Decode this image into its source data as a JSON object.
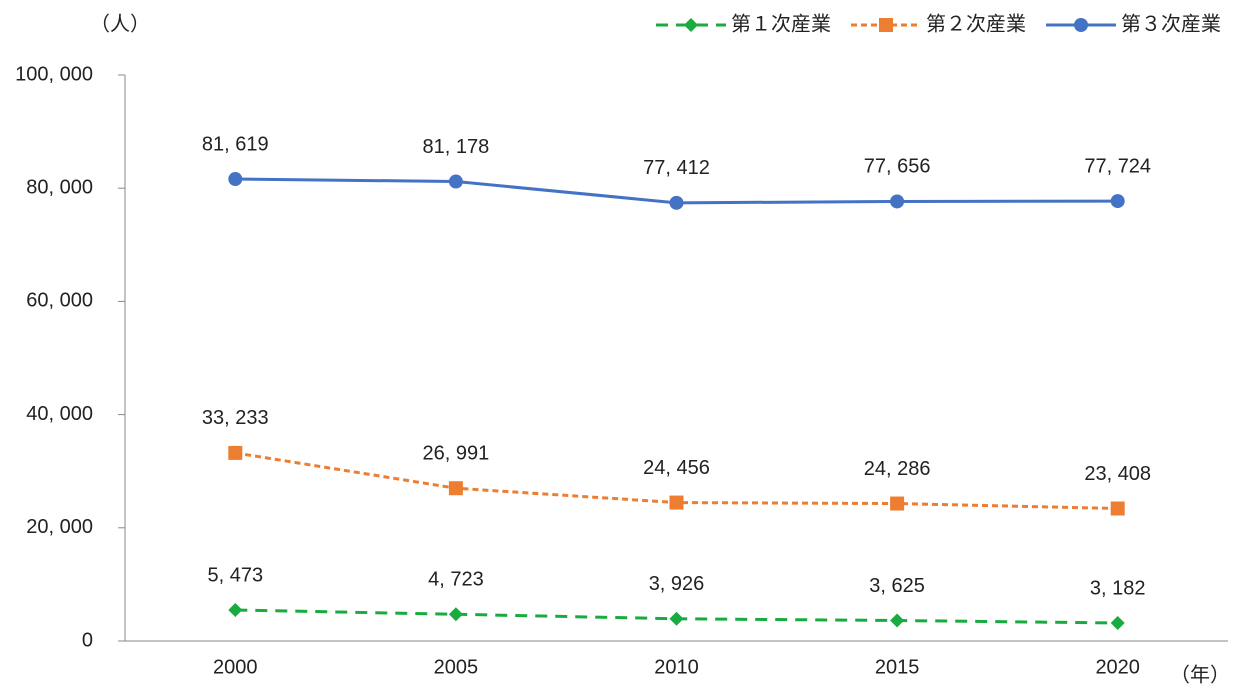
{
  "chart_data": {
    "type": "line",
    "y_label": "（人）",
    "x_label": "（年）",
    "categories": [
      "2000",
      "2005",
      "2010",
      "2015",
      "2020"
    ],
    "series": [
      {
        "name": "第１次産業",
        "color": "#1aab40",
        "dash": true,
        "marker": "diamond",
        "values": [
          5473,
          4723,
          3926,
          3625,
          3182
        ],
        "value_labels": [
          "5, 473",
          "4, 723",
          "3, 926",
          "3, 625",
          "3, 182"
        ]
      },
      {
        "name": "第２次産業",
        "color": "#ed7d31",
        "dash": true,
        "marker": "square",
        "values": [
          33233,
          26991,
          24456,
          24286,
          23408
        ],
        "value_labels": [
          "33, 233",
          "26, 991",
          "24, 456",
          "24, 286",
          "23, 408"
        ]
      },
      {
        "name": "第３次産業",
        "color": "#4472c4",
        "dash": false,
        "marker": "circle",
        "values": [
          81619,
          81178,
          77412,
          77656,
          77724
        ],
        "value_labels": [
          "81, 619",
          "81, 178",
          "77, 412",
          "77, 656",
          "77, 724"
        ]
      }
    ],
    "ylim": [
      0,
      100000
    ],
    "yticks": [
      0,
      {
        "value": 20000,
        "label": "20, 000"
      },
      {
        "value": 40000,
        "label": "40, 000"
      },
      {
        "value": 60000,
        "label": "60, 000"
      },
      {
        "value": 80000,
        "label": "80, 000"
      },
      {
        "value": 100000,
        "label": "100, 000"
      }
    ],
    "legend": "top-right",
    "grid": false
  }
}
